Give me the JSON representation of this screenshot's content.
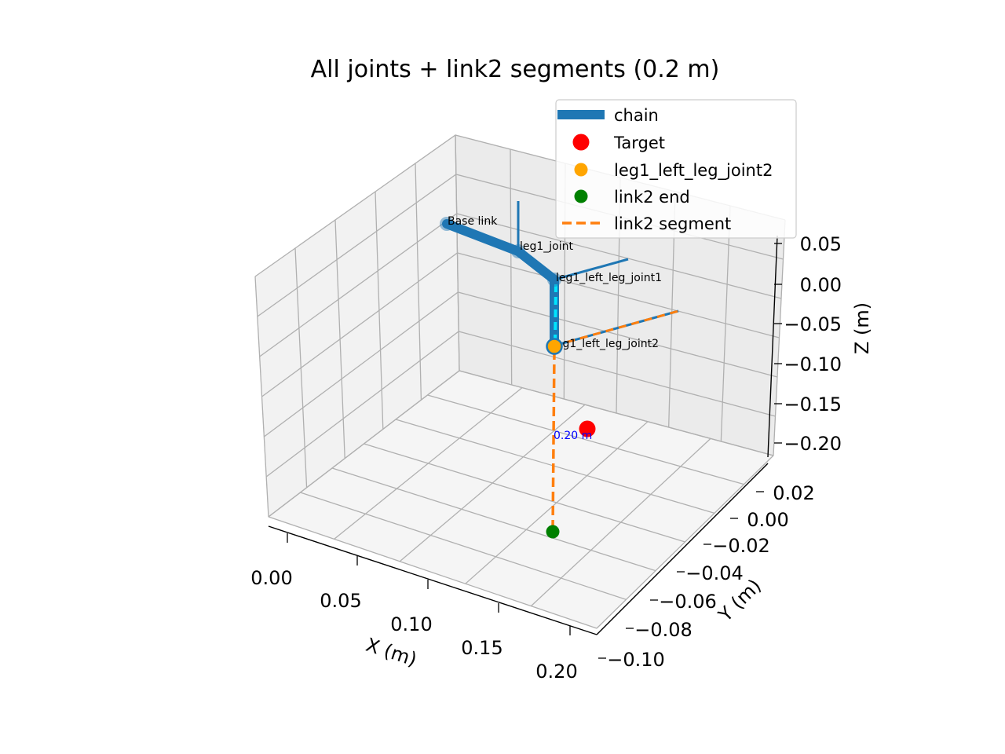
{
  "chart_data": {
    "type": "line3d",
    "title": "All joints + link2 segments (0.2 m)",
    "xlabel": "X (m)",
    "ylabel": "Y (m)",
    "zlabel": "Z (m)",
    "x_ticks": [
      "0.00",
      "0.05",
      "0.10",
      "0.15",
      "0.20"
    ],
    "y_ticks": [
      "0.02",
      "0.00",
      "−0.02",
      "−0.04",
      "−0.06",
      "−0.08",
      "−0.10"
    ],
    "z_ticks": [
      "0.05",
      "0.00",
      "−0.05",
      "−0.10",
      "−0.15",
      "−0.20"
    ],
    "grid": true,
    "legend_position": "top-right",
    "legend": [
      {
        "label": "chain",
        "color": "#1f77b4",
        "marker": "line"
      },
      {
        "label": "Target",
        "color": "#ff0000",
        "marker": "dot"
      },
      {
        "label": "leg1_left_leg_joint2",
        "color": "#ffa500",
        "marker": "dot"
      },
      {
        "label": "link2 end",
        "color": "#008000",
        "marker": "dot"
      },
      {
        "label": "link2 segment",
        "color": "#ff7f0e",
        "marker": "dash"
      }
    ],
    "joints": [
      {
        "name": "Base link",
        "x": 0.0,
        "y": 0.0,
        "z": 0.05
      },
      {
        "name": "leg1_joint",
        "x": 0.05,
        "y": 0.0,
        "z": 0.05
      },
      {
        "name": "leg1_left_leg_joint1",
        "x": 0.09,
        "y": -0.01,
        "z": 0.03
      },
      {
        "name": "leg1_left_leg_joint2",
        "x": 0.09,
        "y": -0.01,
        "z": -0.08
      }
    ],
    "target": {
      "label": "Target",
      "x": 0.12,
      "y": -0.02,
      "z": -0.18
    },
    "link2_end": {
      "label": "link2 end",
      "x": 0.09,
      "y": -0.01,
      "z": -0.28
    },
    "link2_length_label": "0.20 m",
    "colors": {
      "chain": "#1f77b4",
      "target": "#ff0000",
      "joint2": "#ffa500",
      "link2_end": "#008000",
      "link2_segment": "#ff7f0e",
      "highlight": "#00e5ff",
      "measure_label": "#0000ff"
    }
  }
}
